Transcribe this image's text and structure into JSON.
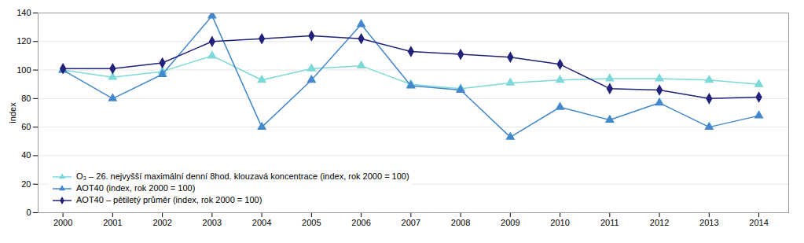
{
  "chart_data": {
    "type": "line",
    "x": [
      2000,
      2001,
      2002,
      2003,
      2004,
      2005,
      2006,
      2007,
      2008,
      2009,
      2010,
      2011,
      2012,
      2013,
      2014
    ],
    "xlim": [
      1999.5,
      2014.6
    ],
    "xticks": [
      2000,
      2001,
      2002,
      2003,
      2004,
      2005,
      2006,
      2007,
      2008,
      2009,
      2010,
      2011,
      2012,
      2013,
      2014
    ],
    "ylabel": "index",
    "ylim": [
      0,
      140
    ],
    "yticks": [
      0,
      20,
      40,
      60,
      80,
      100,
      120,
      140
    ],
    "grid": true,
    "legend": "lower left",
    "series": [
      {
        "name": "O₃ – 26. nejvyšší maximální denní 8hod. klouzavá koncentrace (index, rok 2000 = 100)",
        "color": "#7dd8d8",
        "marker": "triangle",
        "values": [
          100,
          95,
          99,
          110,
          93,
          101,
          103,
          90,
          87,
          91,
          93,
          94,
          94,
          93,
          90
        ]
      },
      {
        "name": "AOT40 (index, rok 2000 = 100)",
        "color": "#4488cc",
        "marker": "triangle",
        "values": [
          100,
          80,
          97,
          138,
          60,
          93,
          132,
          89,
          86,
          53,
          74,
          65,
          77,
          60,
          68
        ]
      },
      {
        "name": "AOT40 – pětiletý průměr (index, rok 2000 = 100)",
        "color": "#22227a",
        "marker": "diamond",
        "values": [
          101,
          101,
          105,
          120,
          122,
          124,
          122,
          113,
          111,
          109,
          104,
          87,
          86,
          80,
          81
        ]
      }
    ]
  }
}
